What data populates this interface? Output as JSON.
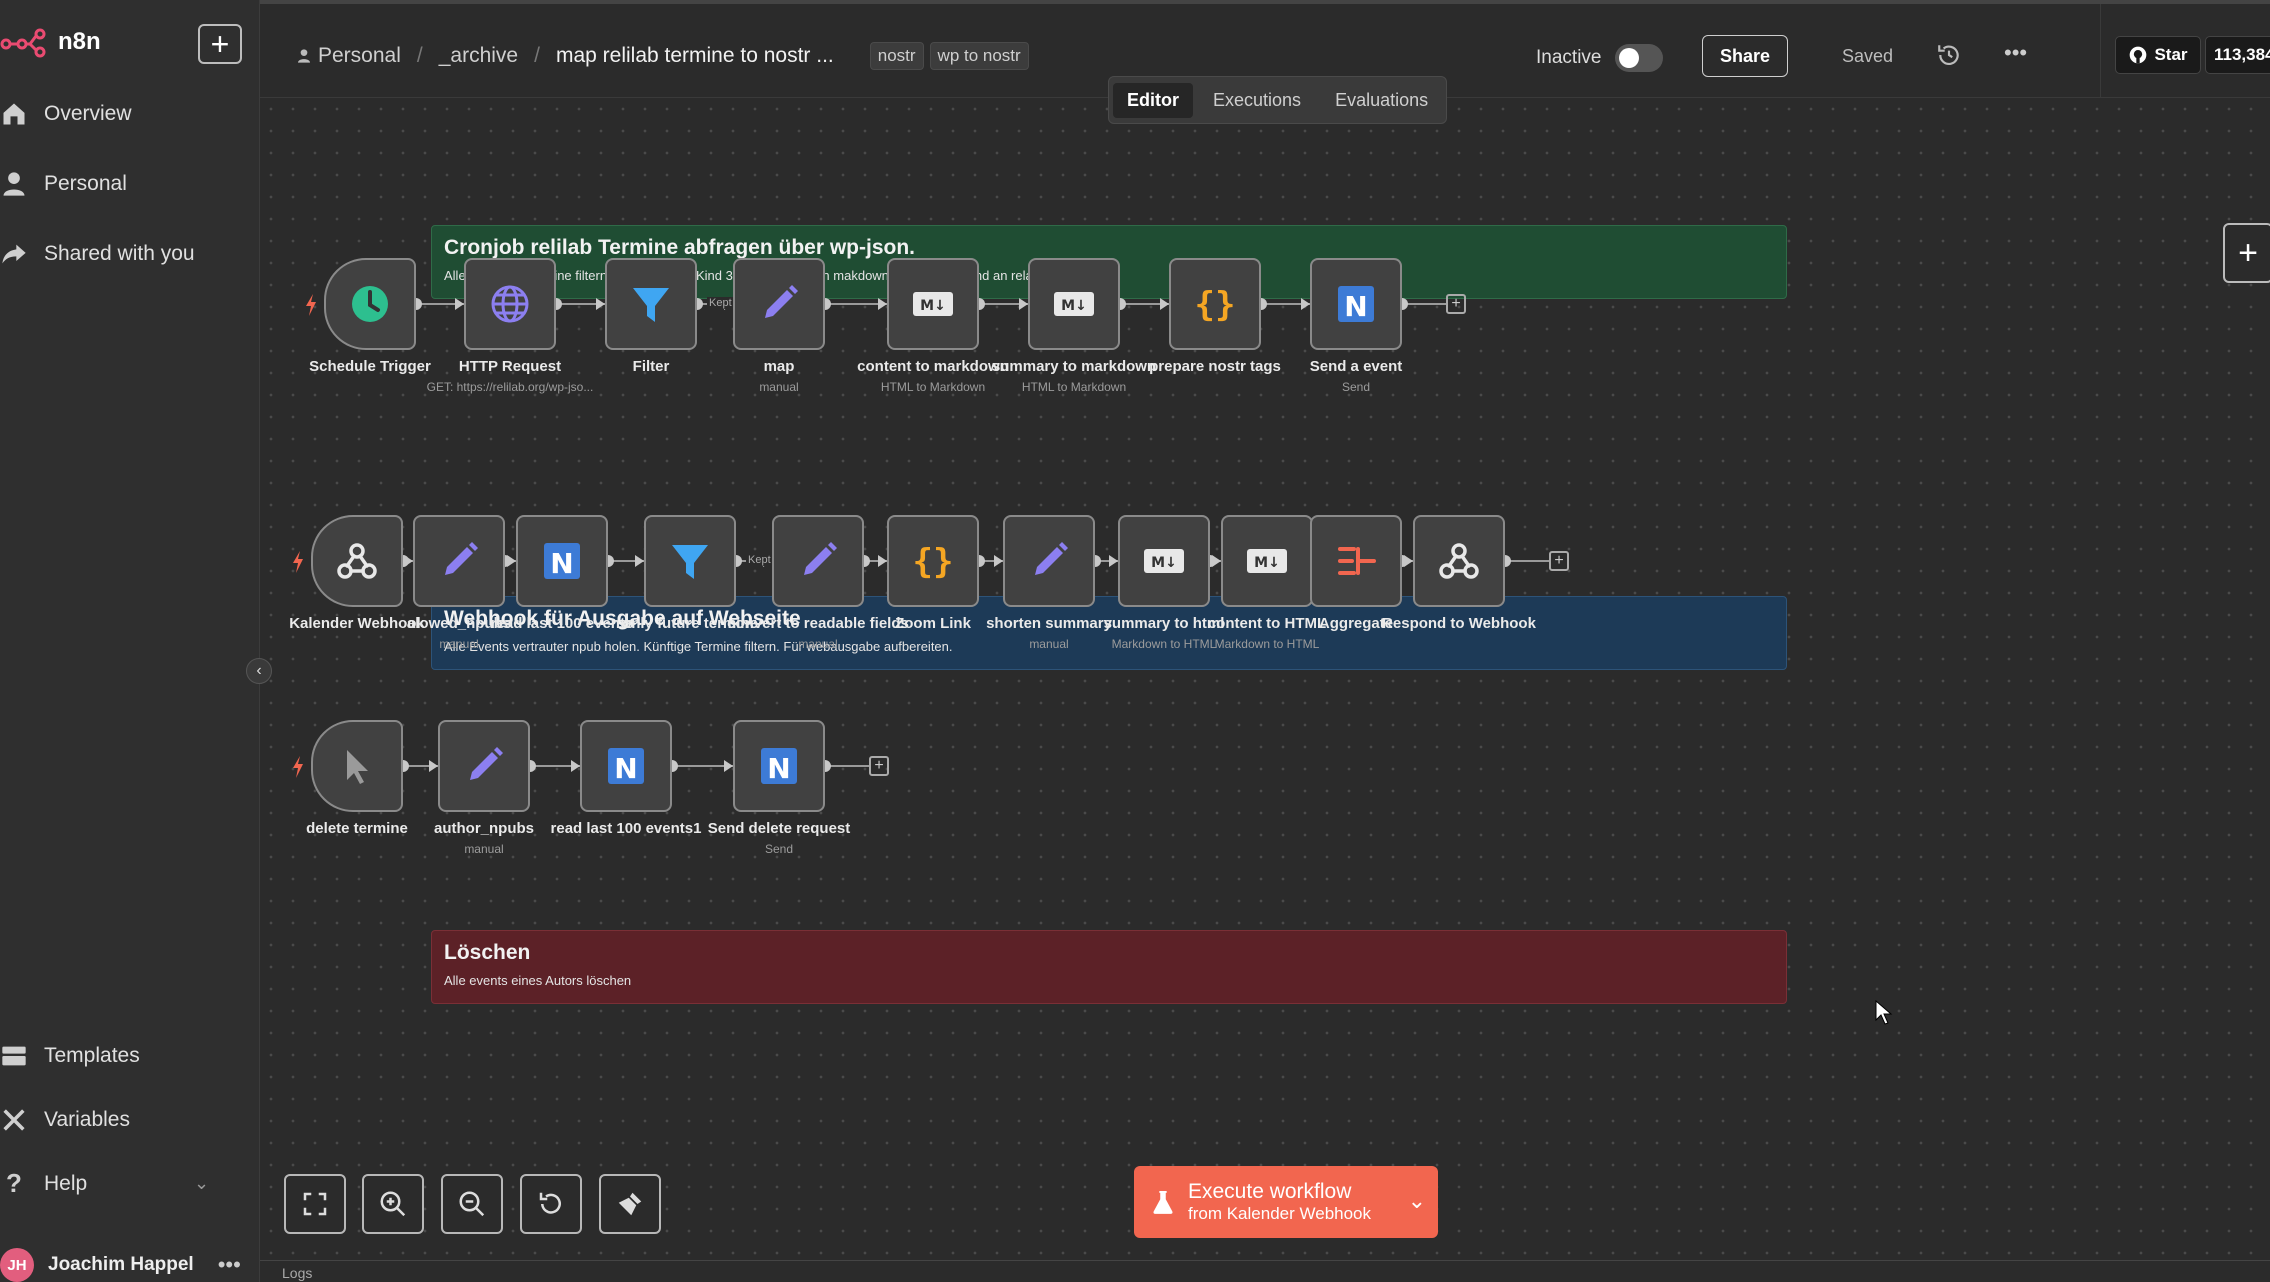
{
  "app": {
    "logo_text": "n8n"
  },
  "sidebar": {
    "add_label": "+",
    "items": [
      {
        "label": "Overview"
      },
      {
        "label": "Personal"
      },
      {
        "label": "Shared with you"
      }
    ],
    "bottom_items": [
      {
        "label": "Templates"
      },
      {
        "label": "Variables"
      },
      {
        "label": "Help"
      }
    ],
    "user": {
      "initials": "JH",
      "name": "Joachim Happel"
    }
  },
  "header": {
    "breadcrumb": {
      "project": "Personal",
      "folder": "_archive",
      "workflow": "map relilab termine to nostr ..."
    },
    "tags": [
      "nostr",
      "wp to nostr"
    ],
    "status_label": "Inactive",
    "share_label": "Share",
    "saved_label": "Saved",
    "github": {
      "star_label": "Star",
      "count": "113,384"
    }
  },
  "tabs": [
    {
      "label": "Editor",
      "active": true
    },
    {
      "label": "Executions",
      "active": false
    },
    {
      "label": "Evaluations",
      "active": false
    }
  ],
  "stickies": [
    {
      "title": "Cronjob relilab Termine abfragen über wp-json.",
      "desc": "Alle künftigen Termine filtern und als nostre Kind 31293 mappen, in makdown konvertieren und an relays versenden.",
      "color": "#1f4d33"
    },
    {
      "title": "Webhook für Ausgabe auf Webseite",
      "desc": "Alle Events vertrauter npub holen. Künftige Termine filtern. Für webausgabe aufbereiten.",
      "color": "#1d3a57"
    },
    {
      "title": "Löschen",
      "desc": "Alle events eines Autors löschen",
      "color": "#5c2127"
    }
  ],
  "row1_nodes": [
    {
      "label": "Schedule Trigger",
      "sub": "",
      "icon": "clock-icon"
    },
    {
      "label": "HTTP Request",
      "sub": "GET: https://relilab.org/wp-jso...",
      "icon": "globe-icon"
    },
    {
      "label": "Filter",
      "sub": "",
      "icon": "filter-icon"
    },
    {
      "label": "map",
      "sub": "manual",
      "icon": "pencil-icon"
    },
    {
      "label": "content to markdown",
      "sub": "HTML to Markdown",
      "icon": "markdown-icon"
    },
    {
      "label": "summary to markdown",
      "sub": "HTML to Markdown",
      "icon": "markdown-icon"
    },
    {
      "label": "prepare nostr tags",
      "sub": "",
      "icon": "code-icon"
    },
    {
      "label": "Send a event",
      "sub": "Send",
      "icon": "nostr-icon"
    }
  ],
  "row2_nodes": [
    {
      "label": "Kalender Webhook",
      "sub": "",
      "icon": "webhook-icon"
    },
    {
      "label": "alowed_npubs",
      "sub": "manual",
      "icon": "pencil-icon"
    },
    {
      "label": "read last 100 events",
      "sub": "",
      "icon": "nostr-icon"
    },
    {
      "label": "only future termine",
      "sub": "",
      "icon": "filter-icon"
    },
    {
      "label": "convert to readable fields",
      "sub": "manual",
      "icon": "pencil-icon"
    },
    {
      "label": "Zoom Link",
      "sub": "",
      "icon": "code-icon"
    },
    {
      "label": "shorten summary",
      "sub": "manual",
      "icon": "pencil-icon"
    },
    {
      "label": "summary to html",
      "sub": "Markdown to HTML",
      "icon": "markdown-icon"
    },
    {
      "label": "content to HTML",
      "sub": "Markdown to HTML",
      "icon": "markdown-icon"
    },
    {
      "label": "Aggregate",
      "sub": "",
      "icon": "aggregate-icon"
    },
    {
      "label": "Respond to Webhook",
      "sub": "",
      "icon": "webhook-icon"
    }
  ],
  "row3_nodes": [
    {
      "label": "delete termine",
      "sub": "",
      "icon": "cursor-icon"
    },
    {
      "label": "author_npubs",
      "sub": "manual",
      "icon": "pencil-icon"
    },
    {
      "label": "read last 100 events1",
      "sub": "",
      "icon": "nostr-icon"
    },
    {
      "label": "Send delete request",
      "sub": "Send",
      "icon": "nostr-icon"
    }
  ],
  "wire_labels": {
    "kept": "Kept",
    "get": "GET"
  },
  "execute": {
    "line1": "Execute workflow",
    "line2": "from Kalender Webhook"
  },
  "logs_label": "Logs",
  "colors": {
    "accent": "#f2664f",
    "pencil": "#8c7ff0",
    "filter": "#3fa6f2",
    "code": "#f5a623",
    "clock": "#2dbf8f",
    "nostr": "#3d7bd6"
  }
}
